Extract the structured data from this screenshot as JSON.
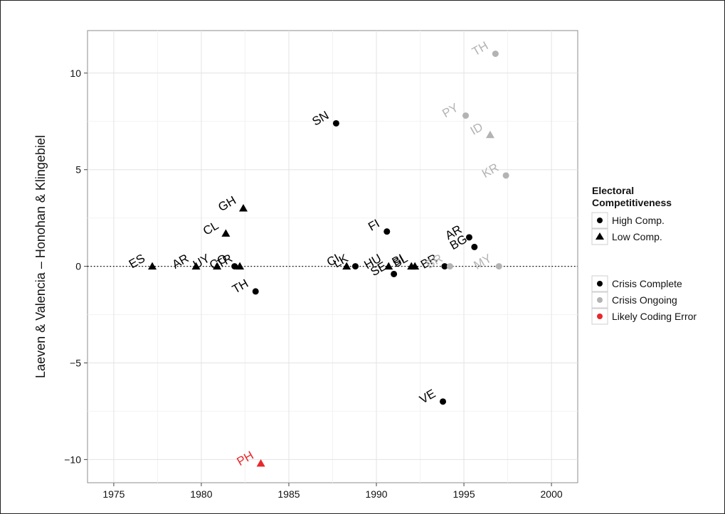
{
  "chart_data": {
    "type": "scatter",
    "title": "",
    "xlabel": "",
    "ylabel": "Laeven & Valencia – Honohan & Klingebiel",
    "xlim": [
      1973.5,
      2001.5
    ],
    "ylim": [
      -11.2,
      12.2
    ],
    "x_ticks": [
      1975,
      1980,
      1985,
      1990,
      1995,
      2000
    ],
    "y_ticks": [
      -10,
      -5,
      0,
      5,
      10
    ],
    "y_tick_labels": [
      "−10",
      "−5",
      "0",
      "5",
      "10"
    ],
    "grid": true,
    "reference_line": {
      "y": 0,
      "style": "dotted"
    },
    "legend_shape": {
      "title_line1": "Electoral",
      "title_line2": "Competitiveness",
      "items": [
        {
          "label": "High Comp.",
          "shape": "circle"
        },
        {
          "label": "Low Comp.",
          "shape": "triangle"
        }
      ]
    },
    "legend_color": {
      "items": [
        {
          "label": "Crisis Complete",
          "color": "#000000"
        },
        {
          "label": "Crisis Ongoing",
          "color": "#b3b3b3"
        },
        {
          "label": "Likely Coding Error",
          "color": "#e8282b"
        }
      ]
    },
    "points": [
      {
        "label": "ES",
        "x": 1977.2,
        "y": 0.0,
        "shape": "triangle",
        "status": "complete"
      },
      {
        "label": "AR",
        "x": 1979.7,
        "y": 0.0,
        "shape": "triangle",
        "status": "complete"
      },
      {
        "label": "UY",
        "x": 1980.9,
        "y": 0.0,
        "shape": "triangle",
        "status": "complete"
      },
      {
        "label": "CL",
        "x": 1981.4,
        "y": 1.7,
        "shape": "triangle",
        "status": "complete"
      },
      {
        "label": "CO",
        "x": 1981.9,
        "y": 0.0,
        "shape": "circle",
        "status": "complete"
      },
      {
        "label": "TR",
        "x": 1982.2,
        "y": 0.0,
        "shape": "triangle",
        "status": "complete"
      },
      {
        "label": "GH",
        "x": 1982.4,
        "y": 3.0,
        "shape": "triangle",
        "status": "complete"
      },
      {
        "label": "TH",
        "x": 1983.1,
        "y": -1.3,
        "shape": "circle",
        "status": "complete"
      },
      {
        "label": "PH",
        "x": 1983.4,
        "y": -10.2,
        "shape": "triangle",
        "status": "error"
      },
      {
        "label": "SN",
        "x": 1987.7,
        "y": 7.4,
        "shape": "circle",
        "status": "complete"
      },
      {
        "label": "CI",
        "x": 1988.3,
        "y": 0.0,
        "shape": "triangle",
        "status": "complete"
      },
      {
        "label": "LK",
        "x": 1988.8,
        "y": 0.0,
        "shape": "circle",
        "status": "complete"
      },
      {
        "label": "FI",
        "x": 1990.6,
        "y": 1.8,
        "shape": "circle",
        "status": "complete"
      },
      {
        "label": "HU",
        "x": 1990.7,
        "y": 0.0,
        "shape": "triangle",
        "status": "complete"
      },
      {
        "label": "SE",
        "x": 1991.0,
        "y": -0.4,
        "shape": "circle",
        "status": "complete"
      },
      {
        "label": "BI",
        "x": 1992.0,
        "y": 0.0,
        "shape": "triangle",
        "status": "complete"
      },
      {
        "label": "SL",
        "x": 1992.2,
        "y": 0.0,
        "shape": "triangle",
        "status": "complete"
      },
      {
        "label": "BR",
        "x": 1993.9,
        "y": 0.0,
        "shape": "circle",
        "status": "complete"
      },
      {
        "label": "AR",
        "x": 1995.3,
        "y": 1.5,
        "shape": "circle",
        "status": "complete"
      },
      {
        "label": "BG",
        "x": 1995.6,
        "y": 1.0,
        "shape": "circle",
        "status": "complete"
      },
      {
        "label": "VE",
        "x": 1993.8,
        "y": -7.0,
        "shape": "circle",
        "status": "complete"
      },
      {
        "label": "BR",
        "x": 1994.2,
        "y": 0.0,
        "shape": "circle",
        "status": "ongoing"
      },
      {
        "label": "PY",
        "x": 1995.1,
        "y": 7.8,
        "shape": "circle",
        "status": "ongoing"
      },
      {
        "label": "ID",
        "x": 1996.5,
        "y": 6.8,
        "shape": "triangle",
        "status": "ongoing"
      },
      {
        "label": "TH",
        "x": 1996.8,
        "y": 11.0,
        "shape": "circle",
        "status": "ongoing"
      },
      {
        "label": "KR",
        "x": 1997.4,
        "y": 4.7,
        "shape": "circle",
        "status": "ongoing"
      },
      {
        "label": "MY",
        "x": 1997.0,
        "y": 0.0,
        "shape": "circle",
        "status": "ongoing"
      }
    ]
  }
}
